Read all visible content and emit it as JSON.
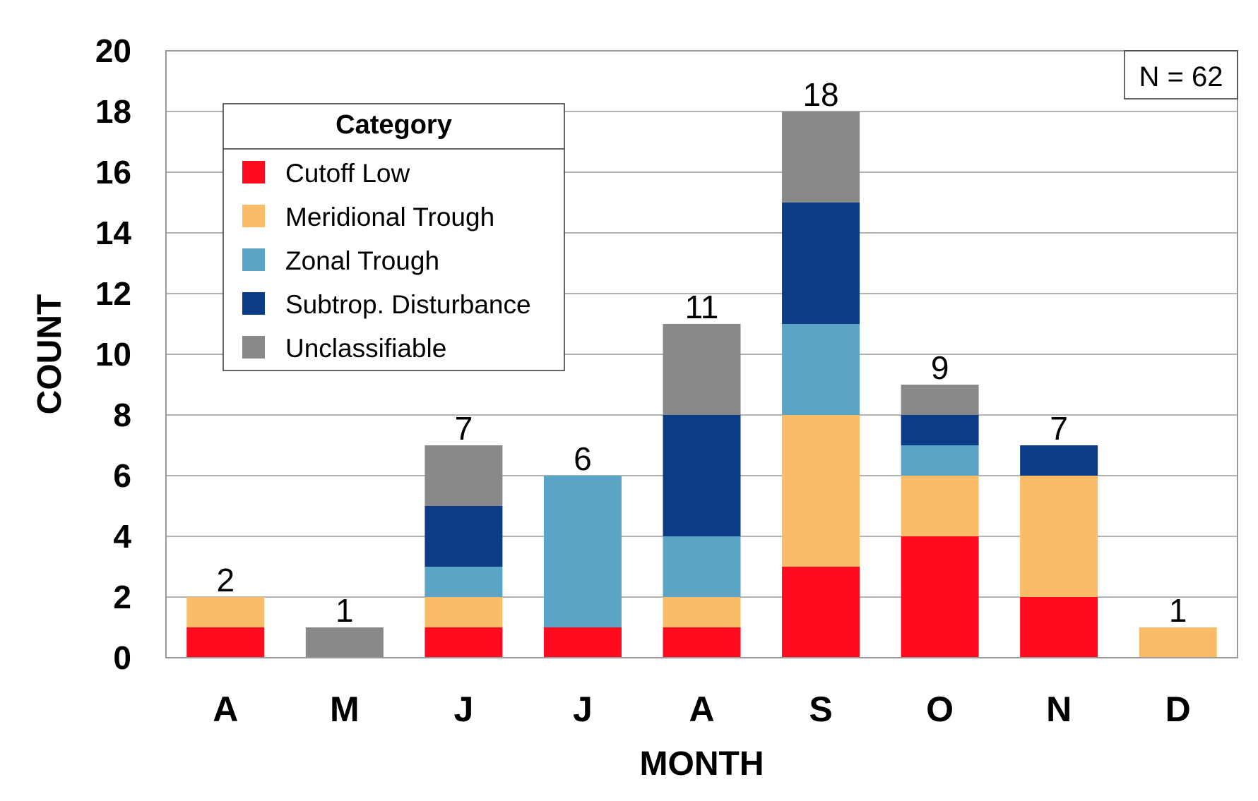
{
  "chart_data": {
    "type": "bar",
    "stacked": true,
    "title": "",
    "xlabel": "MONTH",
    "ylabel": "COUNT",
    "ylim": [
      0,
      20
    ],
    "yticks": [
      0,
      2,
      4,
      6,
      8,
      10,
      12,
      14,
      16,
      18,
      20
    ],
    "grid": true,
    "categories": [
      "A",
      "M",
      "J",
      "J",
      "A",
      "S",
      "O",
      "N",
      "D"
    ],
    "totals": [
      2,
      1,
      7,
      6,
      11,
      18,
      9,
      7,
      1
    ],
    "series": [
      {
        "name": "Cutoff Low",
        "color": "#ff0a1f",
        "values": [
          1,
          0,
          1,
          1,
          1,
          3,
          4,
          2,
          0
        ]
      },
      {
        "name": "Meridional Trough",
        "color": "#fabc66",
        "values": [
          1,
          0,
          1,
          0,
          1,
          5,
          2,
          4,
          1
        ]
      },
      {
        "name": "Zonal Trough",
        "color": "#5aa5c6",
        "values": [
          0,
          0,
          1,
          5,
          2,
          3,
          1,
          0,
          0
        ]
      },
      {
        "name": "Subtrop. Disturbance",
        "color": "#0c3c86",
        "values": [
          0,
          0,
          2,
          0,
          4,
          4,
          1,
          1,
          0
        ]
      },
      {
        "name": "Unclassifiable",
        "color": "#898989",
        "values": [
          0,
          1,
          2,
          0,
          3,
          3,
          1,
          0,
          0
        ]
      }
    ],
    "legend": {
      "title": "Category",
      "placement": "top-left"
    },
    "annotation": "N = 62"
  }
}
